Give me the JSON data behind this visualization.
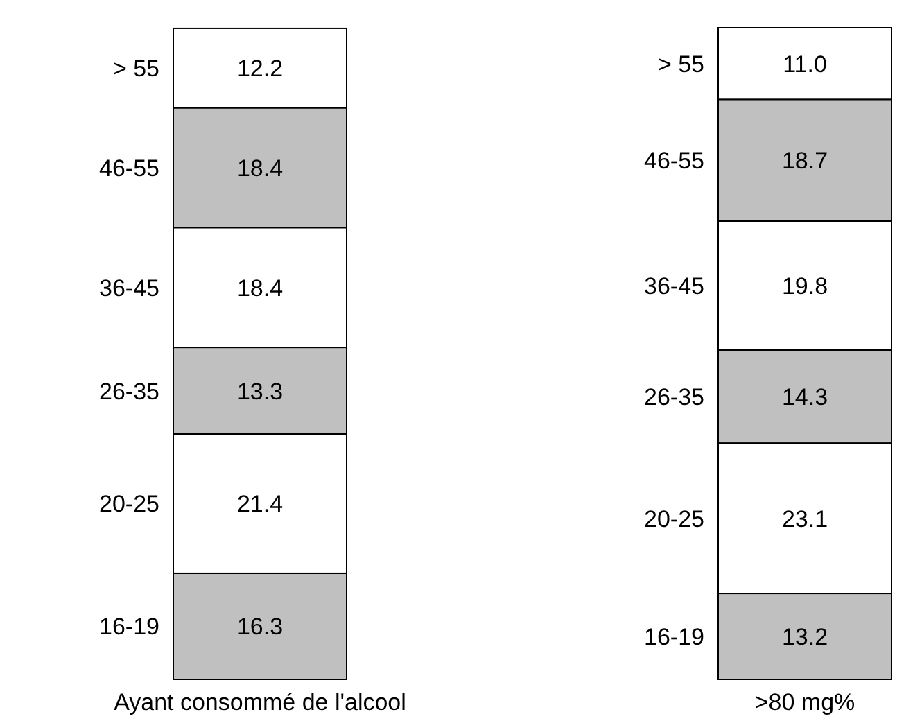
{
  "chart_data": {
    "type": "bar",
    "stacked": true,
    "categories": [
      "Ayant consommé de l'alcool",
      ">80 mg%"
    ],
    "series": [
      {
        "name": "16-19",
        "color": "#c0c0c0",
        "values": [
          16.3,
          13.2
        ],
        "value_labels": [
          "16.3",
          "13.2"
        ]
      },
      {
        "name": "20-25",
        "color": "#ffffff",
        "values": [
          21.4,
          23.1
        ],
        "value_labels": [
          "21.4",
          "23.1"
        ]
      },
      {
        "name": "26-35",
        "color": "#c0c0c0",
        "values": [
          13.3,
          14.3
        ],
        "value_labels": [
          "13.3",
          "14.3"
        ]
      },
      {
        "name": "36-45",
        "color": "#ffffff",
        "values": [
          18.4,
          19.8
        ],
        "value_labels": [
          "18.4",
          "19.8"
        ]
      },
      {
        "name": "46-55",
        "color": "#c0c0c0",
        "values": [
          18.4,
          18.7
        ],
        "value_labels": [
          "18.4",
          "18.7"
        ]
      },
      {
        "name": "> 55",
        "color": "#ffffff",
        "values": [
          12.2,
          11.0
        ],
        "value_labels": [
          "12.2",
          "11.0"
        ]
      }
    ]
  }
}
